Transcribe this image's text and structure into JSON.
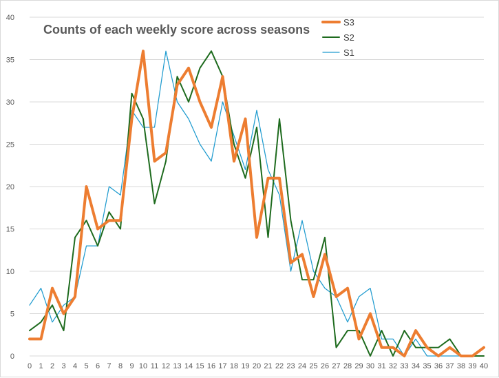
{
  "chart_data": {
    "type": "line",
    "title": "Counts of each weekly score across seasons",
    "xlabel": "",
    "ylabel": "",
    "x": [
      0,
      1,
      2,
      3,
      4,
      5,
      6,
      7,
      8,
      9,
      10,
      11,
      12,
      13,
      14,
      15,
      16,
      17,
      18,
      19,
      20,
      21,
      22,
      23,
      24,
      25,
      26,
      27,
      28,
      29,
      30,
      31,
      32,
      33,
      34,
      35,
      36,
      37,
      38,
      39,
      40
    ],
    "ylim": [
      0,
      40
    ],
    "yticks": [
      0,
      5,
      10,
      15,
      20,
      25,
      30,
      35,
      40
    ],
    "grid": true,
    "legend_position": "top-right",
    "series": [
      {
        "name": "S3",
        "color": "#ED7D31",
        "values": [
          2,
          2,
          8,
          5,
          7,
          20,
          15,
          16,
          16,
          28,
          36,
          23,
          24,
          32,
          34,
          30,
          27,
          33,
          23,
          28,
          14,
          21,
          21,
          11,
          12,
          7,
          12,
          7,
          8,
          2,
          5,
          1,
          1,
          0,
          3,
          1,
          0,
          1,
          0,
          0,
          1
        ]
      },
      {
        "name": "S2",
        "color": "#1E6B1E",
        "values": [
          3,
          4,
          6,
          3,
          14,
          16,
          13,
          17,
          15,
          31,
          28,
          18,
          23,
          33,
          30,
          34,
          36,
          33,
          25,
          21,
          27,
          14,
          28,
          16,
          9,
          9,
          14,
          1,
          3,
          3,
          0,
          3,
          0,
          3,
          1,
          1,
          1,
          2,
          0,
          0,
          0
        ]
      },
      {
        "name": "S1",
        "color": "#1F9BCF",
        "values": [
          6,
          8,
          4,
          6,
          7,
          13,
          13,
          20,
          19,
          29,
          27,
          27,
          36,
          30,
          28,
          25,
          23,
          30,
          26,
          22,
          29,
          22,
          19,
          10,
          16,
          10,
          8,
          7,
          4,
          7,
          8,
          2,
          2,
          0,
          2,
          0,
          0,
          0,
          0,
          0,
          0
        ]
      }
    ]
  }
}
